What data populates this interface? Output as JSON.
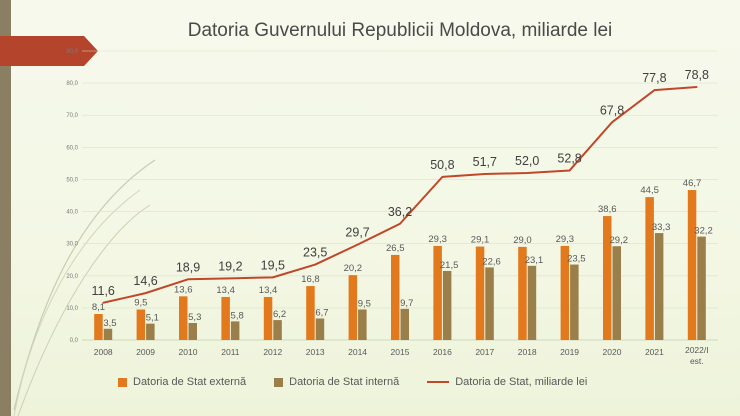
{
  "title": "Datoria Guvernului Republicii Moldova, miliarde lei",
  "colors": {
    "external": "#e2791d",
    "internal": "#9a7f4a",
    "total": "#c0472a",
    "ribbon": "#b5442c",
    "band": "#8a7f63"
  },
  "chart_data": {
    "type": "bar",
    "title": "Datoria Guvernului Republicii Moldova, miliarde lei",
    "categories": [
      "2008",
      "2009",
      "2010",
      "2011",
      "2012",
      "2013",
      "2014",
      "2015",
      "2016",
      "2017",
      "2018",
      "2019",
      "2020",
      "2021",
      "2022/I est."
    ],
    "series": [
      {
        "name": "Datoria de Stat externă",
        "kind": "bar",
        "values": [
          8.1,
          9.5,
          13.6,
          13.4,
          13.4,
          16.8,
          20.2,
          26.5,
          29.3,
          29.1,
          29.0,
          29.3,
          38.6,
          44.5,
          46.7
        ]
      },
      {
        "name": "Datoria de Stat internă",
        "kind": "bar",
        "values": [
          3.5,
          5.1,
          5.3,
          5.8,
          6.2,
          6.7,
          9.5,
          9.7,
          21.5,
          22.6,
          23.1,
          23.5,
          29.2,
          33.3,
          32.2
        ]
      },
      {
        "name": "Datoria de Stat, miliarde lei",
        "kind": "line",
        "values": [
          11.6,
          14.6,
          18.9,
          19.2,
          19.5,
          23.5,
          29.7,
          36.2,
          50.8,
          51.7,
          52.0,
          52.8,
          67.8,
          77.8,
          78.8
        ]
      }
    ],
    "labels": {
      "external": [
        "8,1",
        "9,5",
        "13,6",
        "13,4",
        "13,4",
        "16,8",
        "20,2",
        "26,5",
        "29,3",
        "29,1",
        "29,0",
        "29,3",
        "38,6",
        "44,5",
        "46,7"
      ],
      "internal": [
        "3,5",
        "5,1",
        "5,3",
        "5,8",
        "6,2",
        "6,7",
        "9,5",
        "9,7",
        "21,5",
        "22,6",
        "23,1",
        "23,5",
        "29,2",
        "33,3",
        "32,2"
      ],
      "total": [
        "11,6",
        "14,6",
        "18,9",
        "19,2",
        "19,5",
        "23,5",
        "29,7",
        "36,2",
        "50,8",
        "51,7",
        "52,0",
        "52,8",
        "67,8",
        "77,8",
        "78,8"
      ]
    },
    "yticks": [
      "0,0",
      "10,0",
      "20,0",
      "30,0",
      "40,0",
      "50,0",
      "60,0",
      "70,0",
      "80,0",
      "90,0"
    ],
    "ylim": [
      0,
      90
    ],
    "legend_position": "bottom"
  },
  "legend": {
    "external": "Datoria de Stat externă",
    "internal": "Datoria de Stat internă",
    "total": "Datoria de Stat, miliarde lei"
  }
}
